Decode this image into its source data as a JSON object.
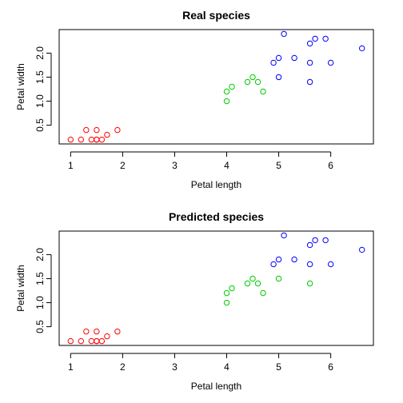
{
  "chart_data": [
    {
      "type": "scatter",
      "title": "Real species",
      "xlabel": "Petal length",
      "ylabel": "Petal width",
      "xlim": [
        0.78,
        6.82
      ],
      "ylim": [
        0.11,
        2.49
      ],
      "x_ticks": [
        1,
        2,
        3,
        4,
        5,
        6
      ],
      "y_ticks": [
        0.5,
        1.0,
        1.5,
        2.0
      ],
      "x_tick_labels": [
        "1",
        "2",
        "3",
        "4",
        "5",
        "6"
      ],
      "y_tick_labels": [
        "0.5",
        "1.0",
        "1.5",
        "2.0"
      ],
      "grid": false,
      "legend": "none",
      "series": [
        {
          "color": "#ff0000",
          "points": [
            [
              1.0,
              0.2
            ],
            [
              1.2,
              0.2
            ],
            [
              1.3,
              0.4
            ],
            [
              1.4,
              0.2
            ],
            [
              1.5,
              0.2
            ],
            [
              1.5,
              0.4
            ],
            [
              1.5,
              0.2
            ],
            [
              1.6,
              0.2
            ],
            [
              1.7,
              0.3
            ],
            [
              1.9,
              0.4
            ]
          ]
        },
        {
          "color": "#00cd00",
          "points": [
            [
              4.0,
              1.0
            ],
            [
              4.0,
              1.2
            ],
            [
              4.1,
              1.3
            ],
            [
              4.4,
              1.4
            ],
            [
              4.5,
              1.5
            ],
            [
              4.6,
              1.4
            ],
            [
              4.7,
              1.2
            ]
          ]
        },
        {
          "color": "#0000ff",
          "points": [
            [
              4.9,
              1.8
            ],
            [
              5.0,
              1.9
            ],
            [
              5.0,
              1.5
            ],
            [
              5.1,
              2.4
            ],
            [
              5.3,
              1.9
            ],
            [
              5.6,
              2.2
            ],
            [
              5.6,
              1.8
            ],
            [
              5.6,
              1.4
            ],
            [
              5.7,
              2.3
            ],
            [
              5.9,
              2.3
            ],
            [
              6.0,
              1.8
            ],
            [
              6.6,
              2.1
            ]
          ]
        }
      ]
    },
    {
      "type": "scatter",
      "title": "Predicted species",
      "xlabel": "Petal length",
      "ylabel": "Petal width",
      "xlim": [
        0.78,
        6.82
      ],
      "ylim": [
        0.11,
        2.49
      ],
      "x_ticks": [
        1,
        2,
        3,
        4,
        5,
        6
      ],
      "y_ticks": [
        0.5,
        1.0,
        1.5,
        2.0
      ],
      "x_tick_labels": [
        "1",
        "2",
        "3",
        "4",
        "5",
        "6"
      ],
      "y_tick_labels": [
        "0.5",
        "1.0",
        "1.5",
        "2.0"
      ],
      "grid": false,
      "legend": "none",
      "series": [
        {
          "color": "#ff0000",
          "points": [
            [
              1.0,
              0.2
            ],
            [
              1.2,
              0.2
            ],
            [
              1.3,
              0.4
            ],
            [
              1.4,
              0.2
            ],
            [
              1.5,
              0.2
            ],
            [
              1.5,
              0.4
            ],
            [
              1.5,
              0.2
            ],
            [
              1.6,
              0.2
            ],
            [
              1.7,
              0.3
            ],
            [
              1.9,
              0.4
            ]
          ]
        },
        {
          "color": "#00cd00",
          "points": [
            [
              4.0,
              1.0
            ],
            [
              4.0,
              1.2
            ],
            [
              4.1,
              1.3
            ],
            [
              4.4,
              1.4
            ],
            [
              4.5,
              1.5
            ],
            [
              4.6,
              1.4
            ],
            [
              4.7,
              1.2
            ],
            [
              5.0,
              1.5
            ],
            [
              5.6,
              1.4
            ]
          ]
        },
        {
          "color": "#0000ff",
          "points": [
            [
              4.9,
              1.8
            ],
            [
              5.0,
              1.9
            ],
            [
              5.1,
              2.4
            ],
            [
              5.3,
              1.9
            ],
            [
              5.6,
              2.2
            ],
            [
              5.6,
              1.8
            ],
            [
              5.7,
              2.3
            ],
            [
              5.9,
              2.3
            ],
            [
              6.0,
              1.8
            ],
            [
              6.6,
              2.1
            ]
          ]
        }
      ]
    }
  ]
}
